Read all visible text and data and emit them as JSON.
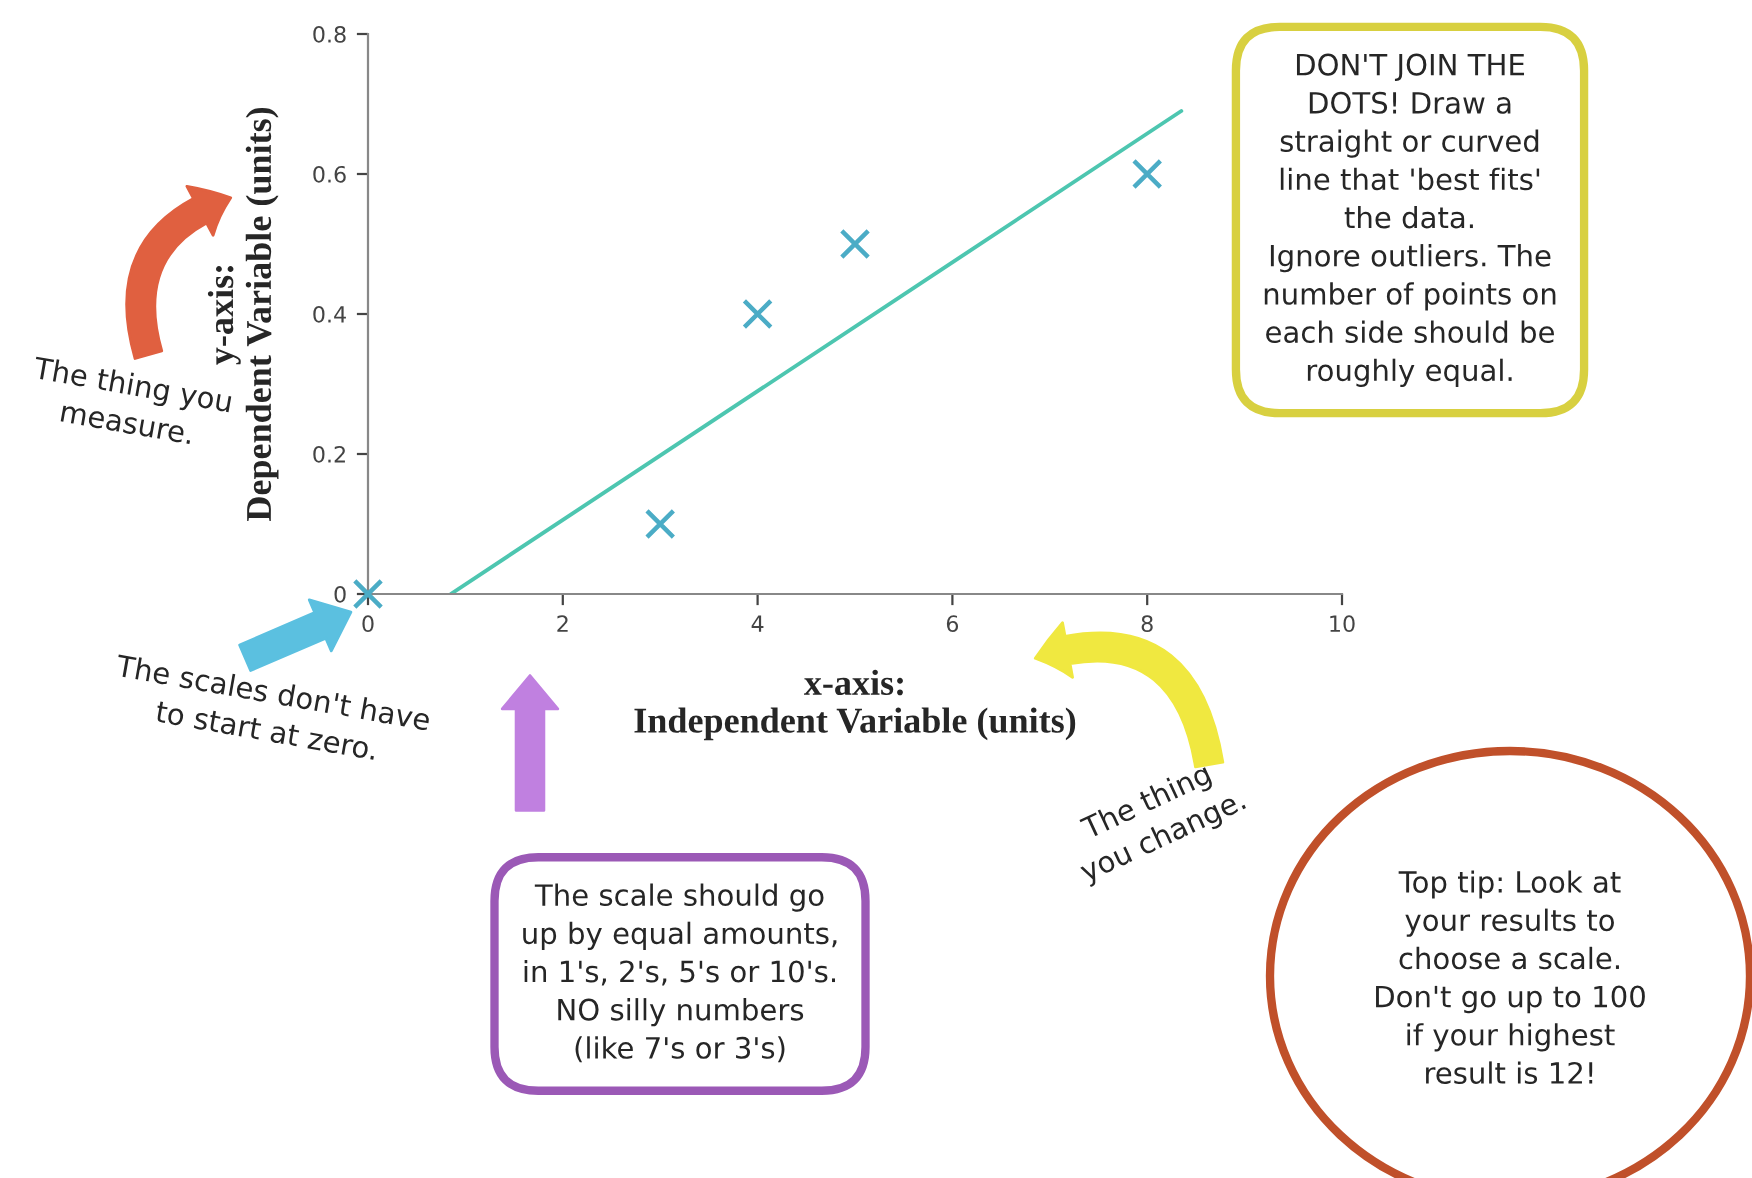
{
  "chart_data": {
    "type": "scatter",
    "xlabel": "x-axis:\nIndependent Variable (units)",
    "ylabel": "y-axis:\nDependent Variable (units)",
    "xlim": [
      0,
      10
    ],
    "xticks": [
      0,
      2,
      4,
      6,
      8,
      10
    ],
    "ylim": [
      0,
      0.8
    ],
    "yticks": [
      0,
      0.2,
      0.4,
      0.6,
      0.8
    ],
    "grid": false,
    "x": [
      0,
      3,
      4,
      5,
      8
    ],
    "series": [
      {
        "color": "#4bacc6",
        "marker": "cross",
        "values": [
          0,
          0.1,
          0.4,
          0.5,
          0.6
        ]
      },
      {
        "type": "line",
        "color": "#4dc6b0",
        "x": [
          0.85,
          8.35
        ],
        "values": [
          0,
          0.69
        ],
        "marker": "none",
        "line_style": "solid"
      }
    ],
    "annotations": [
      "The thing you\nmeasure.",
      "The scales don't have\nto start at zero.",
      "The scale should go\nup by equal amounts,\nin 1's, 2's, 5's or 10's.\nNO silly numbers\n(like 7's or 3's)",
      "The thing\nyou change.",
      "DON'T JOIN THE\nDOTS! Draw a\nstraight or curved\nline that 'best fits'\nthe data.\nIgnore outliers. The\nnumber of points on\neach side should be\nroughly equal.",
      "Top tip: Look at\nyour results to\nchoose a scale.\nDon't go up to 100\nif your highest\nresult is 12!"
    ]
  }
}
